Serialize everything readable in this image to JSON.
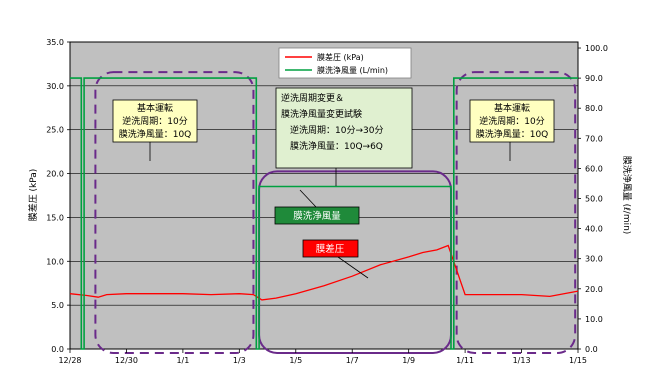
{
  "chart_data": {
    "type": "line",
    "title": "",
    "xlabel": "",
    "ylabel_left": "膜差圧 (kPa)",
    "ylabel_right": "膜洗浄風量 (ℓ/min)",
    "x_ticks": [
      "12/28",
      "12/30",
      "1/1",
      "1/3",
      "1/5",
      "1/7",
      "1/9",
      "1/11",
      "1/13",
      "1/15"
    ],
    "xlim": [
      "12/28",
      "1/15"
    ],
    "y_left_ticks": [
      "0.0",
      "5.0",
      "10.0",
      "15.0",
      "20.0",
      "25.0",
      "30.0",
      "35.0"
    ],
    "ylim_left": [
      0,
      35
    ],
    "y_right_ticks": [
      "0.0",
      "10.0",
      "20.0",
      "30.0",
      "40.0",
      "50.0",
      "60.0",
      "70.0",
      "80.0",
      "90.0",
      "100.0"
    ],
    "ylim_right": [
      0,
      102
    ],
    "grid": true,
    "legend_position": "top-center",
    "series": [
      {
        "name": "膜差圧 (kPa)",
        "axis": "left",
        "color": "#ff0000",
        "points": [
          [
            "12/28",
            6.3
          ],
          [
            "12/28.6",
            6.1
          ],
          [
            "12/29",
            5.9
          ],
          [
            "12/29.3",
            6.2
          ],
          [
            "12/30",
            6.3
          ],
          [
            "12/31",
            6.3
          ],
          [
            "1/1",
            6.3
          ],
          [
            "1/2",
            6.2
          ],
          [
            "1/3",
            6.3
          ],
          [
            "1/3.5",
            6.2
          ],
          [
            "1/3.8",
            5.6
          ],
          [
            "1/4.3",
            5.8
          ],
          [
            "1/5",
            6.3
          ],
          [
            "1/6",
            7.2
          ],
          [
            "1/7",
            8.3
          ],
          [
            "1/8",
            9.6
          ],
          [
            "1/9",
            10.5
          ],
          [
            "1/9.5",
            11.0
          ],
          [
            "1/10",
            11.3
          ],
          [
            "1/10.4",
            11.8
          ],
          [
            "1/11",
            6.2
          ],
          [
            "1/12",
            6.2
          ],
          [
            "1/13",
            6.2
          ],
          [
            "1/14",
            6.0
          ],
          [
            "1/15",
            6.6
          ]
        ]
      },
      {
        "name": "膜洗浄風量 (L/min)",
        "axis": "right",
        "color": "#00a040",
        "points": [
          [
            "12/28",
            90
          ],
          [
            "12/28.4",
            90
          ],
          [
            "12/28.4",
            0
          ],
          [
            "12/28.5",
            0
          ],
          [
            "12/28.5",
            90
          ],
          [
            "1/3.6",
            90
          ],
          [
            "1/3.6",
            0
          ],
          [
            "1/3.7",
            0
          ],
          [
            "1/3.7",
            54
          ],
          [
            "1/10.5",
            54
          ],
          [
            "1/10.5",
            0
          ],
          [
            "1/10.6",
            0
          ],
          [
            "1/10.6",
            90
          ],
          [
            "1/15",
            90
          ]
        ]
      }
    ],
    "annotations": {
      "left_box": [
        "基本運転",
        "逆洗周期：10分",
        "膜洗浄風量：10Q"
      ],
      "middle_box": [
        "逆洗周期変更＆",
        "膜洗浄風量変更試験",
        "逆洗周期：10分→30分",
        "膜洗浄風量：10Q→6Q"
      ],
      "right_box": [
        "基本運転",
        "逆洗周期：10分",
        "膜洗浄風量：10Q"
      ],
      "green_label": "膜洗浄風量",
      "red_label": "膜差圧"
    },
    "colors": {
      "plot_background": "#c0c0c0",
      "pressure": "#ff0000",
      "airflow": "#00a040",
      "phase_box": "#6a2a8a",
      "yellow_box": "#ffffc0",
      "green_box_fill": "#e0f0d0"
    }
  }
}
